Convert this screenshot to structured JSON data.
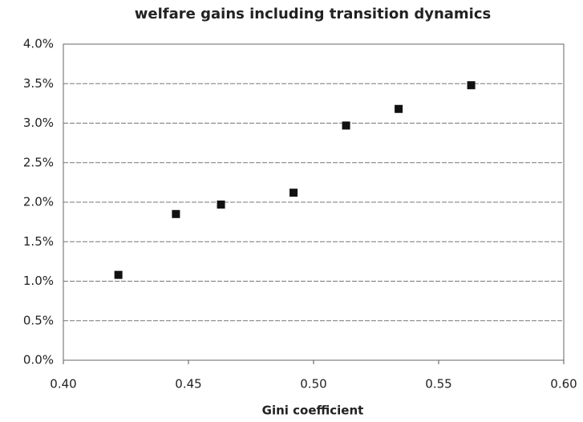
{
  "chart_data": {
    "type": "scatter",
    "title": "welfare gains including transition dynamics",
    "x_label": "Gini coefficient",
    "x": [
      0.422,
      0.445,
      0.463,
      0.492,
      0.513,
      0.534,
      0.563
    ],
    "values": [
      1.08,
      1.85,
      1.97,
      2.12,
      2.97,
      3.18,
      3.48
    ],
    "color": "#111111",
    "xlim": [
      0.4,
      0.6
    ],
    "xticks": [
      {
        "value": 0.4,
        "label": "0.40"
      },
      0.45,
      {
        "value": 0.5,
        "label": "0.50"
      },
      0.55,
      {
        "value": 0.6,
        "label": "0.60"
      }
    ],
    "ylim": [
      0,
      4
    ],
    "yticks": [
      {
        "value": 0,
        "label": "0.0%"
      },
      {
        "value": 0.5,
        "label": "0.5%"
      },
      {
        "value": 1,
        "label": "1.0%"
      },
      {
        "value": 1.5,
        "label": "1.5%"
      },
      {
        "value": 2,
        "label": "2.0%"
      },
      {
        "value": 2.5,
        "label": "2.5%"
      },
      {
        "value": 3,
        "label": "3.0%"
      },
      {
        "value": 3.5,
        "label": "3.5%"
      },
      {
        "value": 4,
        "label": "4.0%"
      }
    ],
    "grid": true
  }
}
